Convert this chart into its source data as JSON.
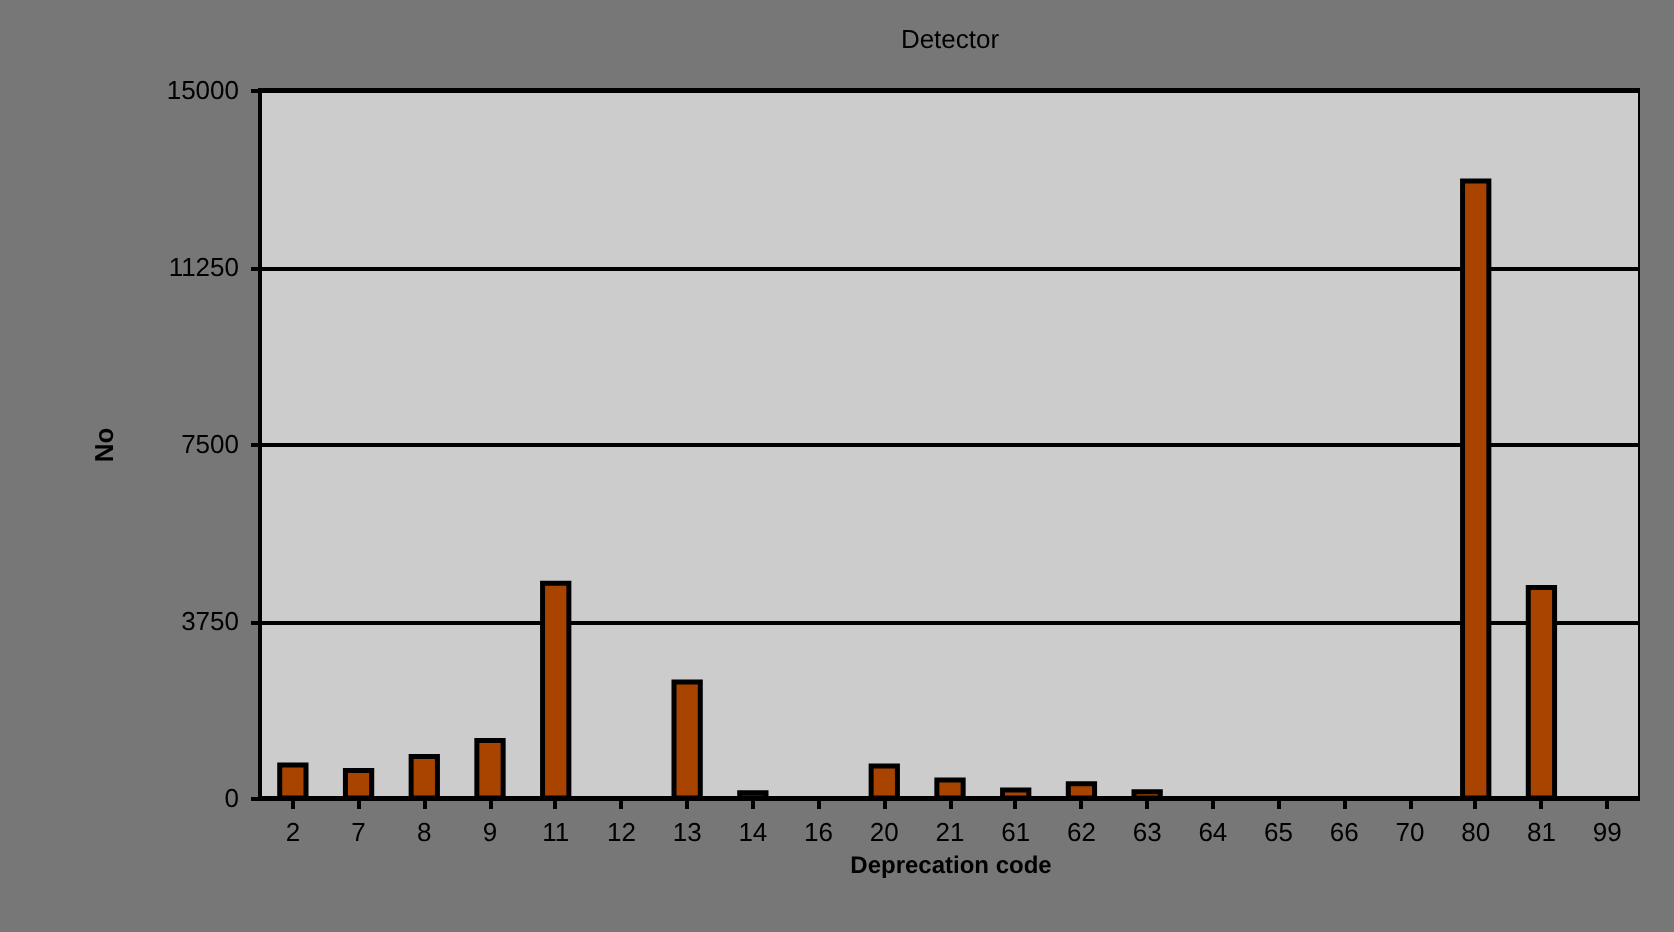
{
  "chart_data": {
    "type": "bar",
    "title": "Detector",
    "xlabel": "Deprecation code",
    "ylabel": "No",
    "categories": [
      "2",
      "7",
      "8",
      "9",
      "11",
      "12",
      "13",
      "14",
      "16",
      "20",
      "21",
      "61",
      "62",
      "63",
      "64",
      "65",
      "66",
      "70",
      "80",
      "81",
      "99"
    ],
    "values": [
      700,
      580,
      880,
      1220,
      4550,
      0,
      2460,
      110,
      0,
      680,
      380,
      170,
      300,
      130,
      0,
      0,
      0,
      0,
      13070,
      4460,
      0
    ],
    "color": "#a94400",
    "ylim": [
      0,
      15000
    ],
    "yticks": [
      0,
      3750,
      7500,
      11250,
      15000
    ],
    "grid": "y"
  }
}
